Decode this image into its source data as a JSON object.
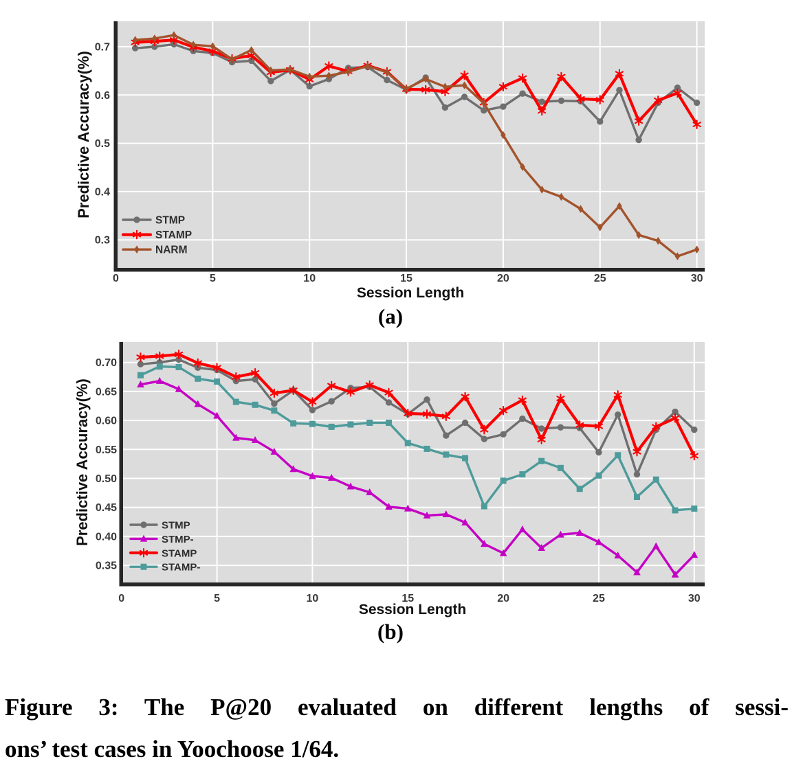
{
  "figure": {
    "caption_line1": "Figure 3: The P@20 evaluated on different lengths of sessi-",
    "caption_line2": "ons’ test cases in Yoochoose 1/64.",
    "subfig_a_label": "(a)",
    "subfig_b_label": "(b)"
  },
  "colors": {
    "plot_background": "#dcdcdc",
    "gridline": "#ffffff",
    "spine": "#262626",
    "tick_text": "#3a3a3a",
    "legend_text": "#2e2e2e",
    "stmp": "#6f6f6f",
    "stamp": "#fb0000",
    "narm": "#a3532c",
    "stmp_minus": "#c400c4",
    "stamp_minus": "#4e9b9b"
  },
  "chart_data": [
    {
      "id": "a",
      "type": "line",
      "xlabel": "Session Length",
      "ylabel": "Predictive Accuracy(%)",
      "x": [
        1,
        2,
        3,
        4,
        5,
        6,
        7,
        8,
        9,
        10,
        11,
        12,
        13,
        14,
        15,
        16,
        17,
        18,
        19,
        20,
        21,
        22,
        23,
        24,
        25,
        26,
        27,
        28,
        29,
        30
      ],
      "xticks": [
        0,
        5,
        10,
        15,
        20,
        25,
        30
      ],
      "xtick_labels": [
        "0",
        "5",
        "10",
        "15",
        "20",
        "25",
        "30"
      ],
      "yticks": [
        0.3,
        0.4,
        0.5,
        0.6,
        0.7
      ],
      "ytick_labels": [
        "0.3",
        "0.4",
        "0.5",
        "0.6",
        "0.7"
      ],
      "xlim": [
        0,
        30.4
      ],
      "ylim": [
        0.242,
        0.753
      ],
      "grid": true,
      "legend_position": "lower left",
      "series": [
        {
          "name": "STMP",
          "color": "#6f6f6f",
          "marker": "circle",
          "values": [
            0.697,
            0.7,
            0.705,
            0.691,
            0.687,
            0.668,
            0.671,
            0.629,
            0.652,
            0.618,
            0.633,
            0.656,
            0.658,
            0.631,
            0.611,
            0.636,
            0.574,
            0.596,
            0.568,
            0.576,
            0.603,
            0.586,
            0.588,
            0.587,
            0.545,
            0.61,
            0.507,
            0.584,
            0.615,
            0.584
          ]
        },
        {
          "name": "STAMP",
          "color": "#fb0000",
          "marker": "star",
          "values": [
            0.709,
            0.711,
            0.714,
            0.699,
            0.691,
            0.675,
            0.682,
            0.647,
            0.652,
            0.632,
            0.66,
            0.649,
            0.661,
            0.648,
            0.612,
            0.611,
            0.607,
            0.641,
            0.584,
            0.617,
            0.635,
            0.567,
            0.638,
            0.592,
            0.59,
            0.644,
            0.546,
            0.589,
            0.604,
            0.539
          ]
        },
        {
          "name": "NARM",
          "color": "#a3532c",
          "marker": "diamond",
          "values": [
            0.714,
            0.717,
            0.724,
            0.704,
            0.701,
            0.674,
            0.693,
            0.651,
            0.653,
            0.638,
            0.64,
            0.648,
            0.66,
            0.647,
            0.613,
            0.633,
            0.617,
            0.62,
            0.583,
            0.517,
            0.451,
            0.404,
            0.389,
            0.364,
            0.326,
            0.37,
            0.31,
            0.298,
            0.266,
            0.28
          ]
        }
      ]
    },
    {
      "id": "b",
      "type": "line",
      "xlabel": "Session Length",
      "ylabel": "Predictive Accuracy(%)",
      "x": [
        1,
        2,
        3,
        4,
        5,
        6,
        7,
        8,
        9,
        10,
        11,
        12,
        13,
        14,
        15,
        16,
        17,
        18,
        19,
        20,
        21,
        22,
        23,
        24,
        25,
        26,
        27,
        28,
        29,
        30
      ],
      "xticks": [
        0,
        5,
        10,
        15,
        20,
        25,
        30
      ],
      "xtick_labels": [
        "0",
        "5",
        "10",
        "15",
        "20",
        "25",
        "30"
      ],
      "yticks": [
        0.35,
        0.4,
        0.45,
        0.5,
        0.55,
        0.6,
        0.65,
        0.7
      ],
      "ytick_labels": [
        "0.35",
        "0.40",
        "0.45",
        "0.50",
        "0.55",
        "0.60",
        "0.65",
        "0.70"
      ],
      "xlim": [
        0,
        30.5
      ],
      "ylim": [
        0.321,
        0.735
      ],
      "grid": true,
      "legend_position": "lower left",
      "series": [
        {
          "name": "STMP",
          "color": "#6f6f6f",
          "marker": "circle",
          "values": [
            0.697,
            0.7,
            0.705,
            0.691,
            0.687,
            0.668,
            0.671,
            0.629,
            0.652,
            0.618,
            0.633,
            0.656,
            0.658,
            0.631,
            0.611,
            0.636,
            0.574,
            0.596,
            0.568,
            0.576,
            0.603,
            0.586,
            0.588,
            0.587,
            0.545,
            0.61,
            0.507,
            0.584,
            0.615,
            0.584
          ]
        },
        {
          "name": "STMP-",
          "color": "#c400c4",
          "marker": "triangle",
          "values": [
            0.662,
            0.668,
            0.654,
            0.628,
            0.608,
            0.57,
            0.566,
            0.546,
            0.516,
            0.504,
            0.501,
            0.486,
            0.476,
            0.451,
            0.448,
            0.436,
            0.438,
            0.424,
            0.387,
            0.371,
            0.412,
            0.38,
            0.403,
            0.406,
            0.39,
            0.367,
            0.338,
            0.383,
            0.334,
            0.368
          ]
        },
        {
          "name": "STAMP",
          "color": "#fb0000",
          "marker": "star",
          "values": [
            0.709,
            0.711,
            0.714,
            0.699,
            0.691,
            0.675,
            0.682,
            0.647,
            0.652,
            0.632,
            0.66,
            0.649,
            0.661,
            0.648,
            0.612,
            0.611,
            0.607,
            0.641,
            0.584,
            0.617,
            0.635,
            0.567,
            0.638,
            0.592,
            0.59,
            0.644,
            0.546,
            0.589,
            0.604,
            0.539
          ]
        },
        {
          "name": "STAMP-",
          "color": "#4e9b9b",
          "marker": "square",
          "values": [
            0.678,
            0.693,
            0.692,
            0.672,
            0.667,
            0.632,
            0.627,
            0.617,
            0.595,
            0.594,
            0.589,
            0.593,
            0.596,
            0.596,
            0.561,
            0.551,
            0.541,
            0.535,
            0.452,
            0.496,
            0.507,
            0.53,
            0.518,
            0.482,
            0.505,
            0.54,
            0.468,
            0.498,
            0.445,
            0.448
          ]
        }
      ]
    }
  ]
}
